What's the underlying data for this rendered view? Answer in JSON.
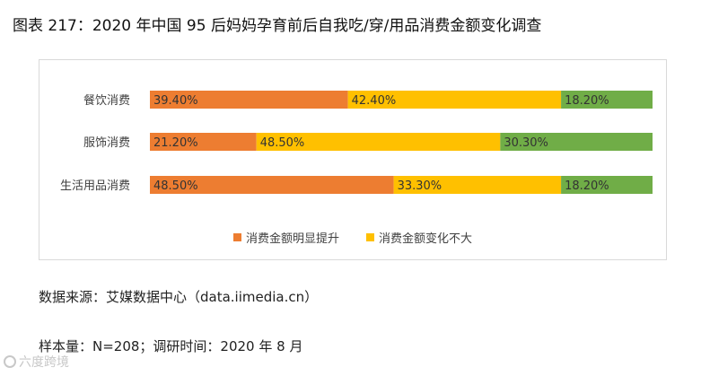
{
  "figure_title": "图表 217：2020 年中国 95 后妈妈孕育前后自我吃/穿/用品消费金额变化调查",
  "chart_data": {
    "type": "bar",
    "orientation": "horizontal",
    "stacked": "percent",
    "categories": [
      "餐饮消费",
      "服饰消费",
      "生活用品消费"
    ],
    "series": [
      {
        "name": "消费金额明显提升",
        "values": [
          39.4,
          21.2,
          48.5
        ],
        "labels": [
          "39.40%",
          "21.20%",
          "48.50%"
        ],
        "color": "#ed7d31"
      },
      {
        "name": "消费金额变化不大",
        "values": [
          42.4,
          48.5,
          33.3
        ],
        "labels": [
          "42.40%",
          "48.50%",
          "33.30%"
        ],
        "color": "#ffc000"
      },
      {
        "name": "",
        "values": [
          18.2,
          30.3,
          18.2
        ],
        "labels": [
          "18.20%",
          "30.30%",
          "18.20%"
        ],
        "color": "#70ad47"
      }
    ],
    "legend": [
      "消费金额明显提升",
      "消费金额变化不大"
    ],
    "legend_position": "bottom"
  },
  "source_note": "数据来源：艾媒数据中心（data.iimedia.cn）",
  "sample_note": "样本量：N=208；调研时间：2020 年 8 月",
  "watermark": "六度跨境"
}
